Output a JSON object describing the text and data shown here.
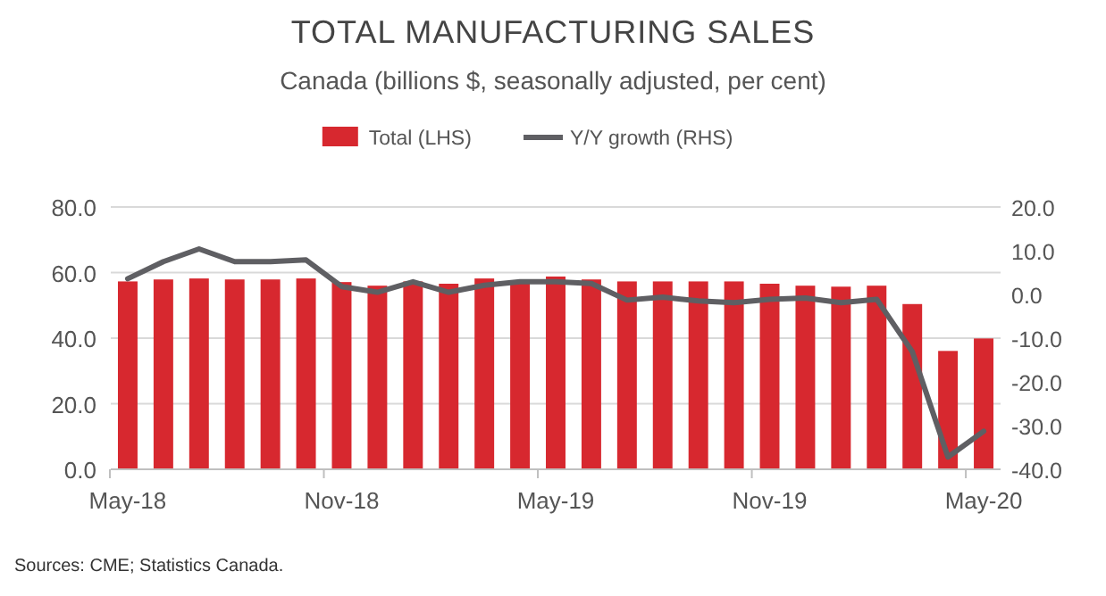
{
  "chart_data": {
    "type": "bar",
    "title": "TOTAL MANUFACTURING SALES",
    "subtitle": "Canada (billions $, seasonally adjusted, per cent)",
    "categories": [
      "May-18",
      null,
      null,
      null,
      null,
      null,
      "Nov-18",
      null,
      null,
      null,
      null,
      null,
      "May-19",
      null,
      null,
      null,
      null,
      null,
      "Nov-19",
      null,
      null,
      null,
      null,
      null,
      "May-20"
    ],
    "series": [
      {
        "name": "Total (LHS)",
        "color": "#d7282f",
        "values": [
          57.3,
          57.9,
          58.2,
          57.9,
          57.9,
          58.2,
          57.1,
          56.0,
          57.3,
          56.6,
          58.2,
          57.3,
          58.8,
          57.9,
          57.3,
          57.3,
          57.3,
          57.3,
          56.6,
          56.0,
          55.7,
          56.0,
          50.4,
          36.1,
          39.9
        ]
      },
      {
        "name": "Y/Y growth (RHS)",
        "type": "line",
        "axis": "y2",
        "color": "#5f5f63",
        "values": [
          3.6,
          7.5,
          10.4,
          7.5,
          7.5,
          7.9,
          1.8,
          0.5,
          2.9,
          0.5,
          2.1,
          2.9,
          2.9,
          2.5,
          -1.3,
          -0.6,
          -1.5,
          -1.9,
          -1.1,
          -0.8,
          -1.9,
          -1.1,
          -13.1,
          -37.2,
          -31.3
        ]
      }
    ],
    "ylim": [
      0,
      80
    ],
    "yticks": [
      {
        "value": 0,
        "label": "0.0"
      },
      {
        "value": 20,
        "label": "20.0"
      },
      {
        "value": 40,
        "label": "40.0"
      },
      {
        "value": 60,
        "label": "60.0"
      },
      {
        "value": 80,
        "label": "80.0"
      }
    ],
    "y2lim": [
      -40,
      20
    ],
    "y2ticks": [
      {
        "value": -40,
        "label": "-40.0"
      },
      {
        "value": -30,
        "label": "-30.0"
      },
      {
        "value": -20,
        "label": "-20.0"
      },
      {
        "value": -10,
        "label": "-10.0"
      },
      {
        "value": 0,
        "label": "0.0"
      },
      {
        "value": 10,
        "label": "10.0"
      },
      {
        "value": 20,
        "label": "20.0"
      }
    ],
    "grid": "y",
    "legend": "top",
    "marker": "none",
    "line_style": "solid",
    "annotations": [
      "Sources: CME; Statistics Canada."
    ]
  }
}
